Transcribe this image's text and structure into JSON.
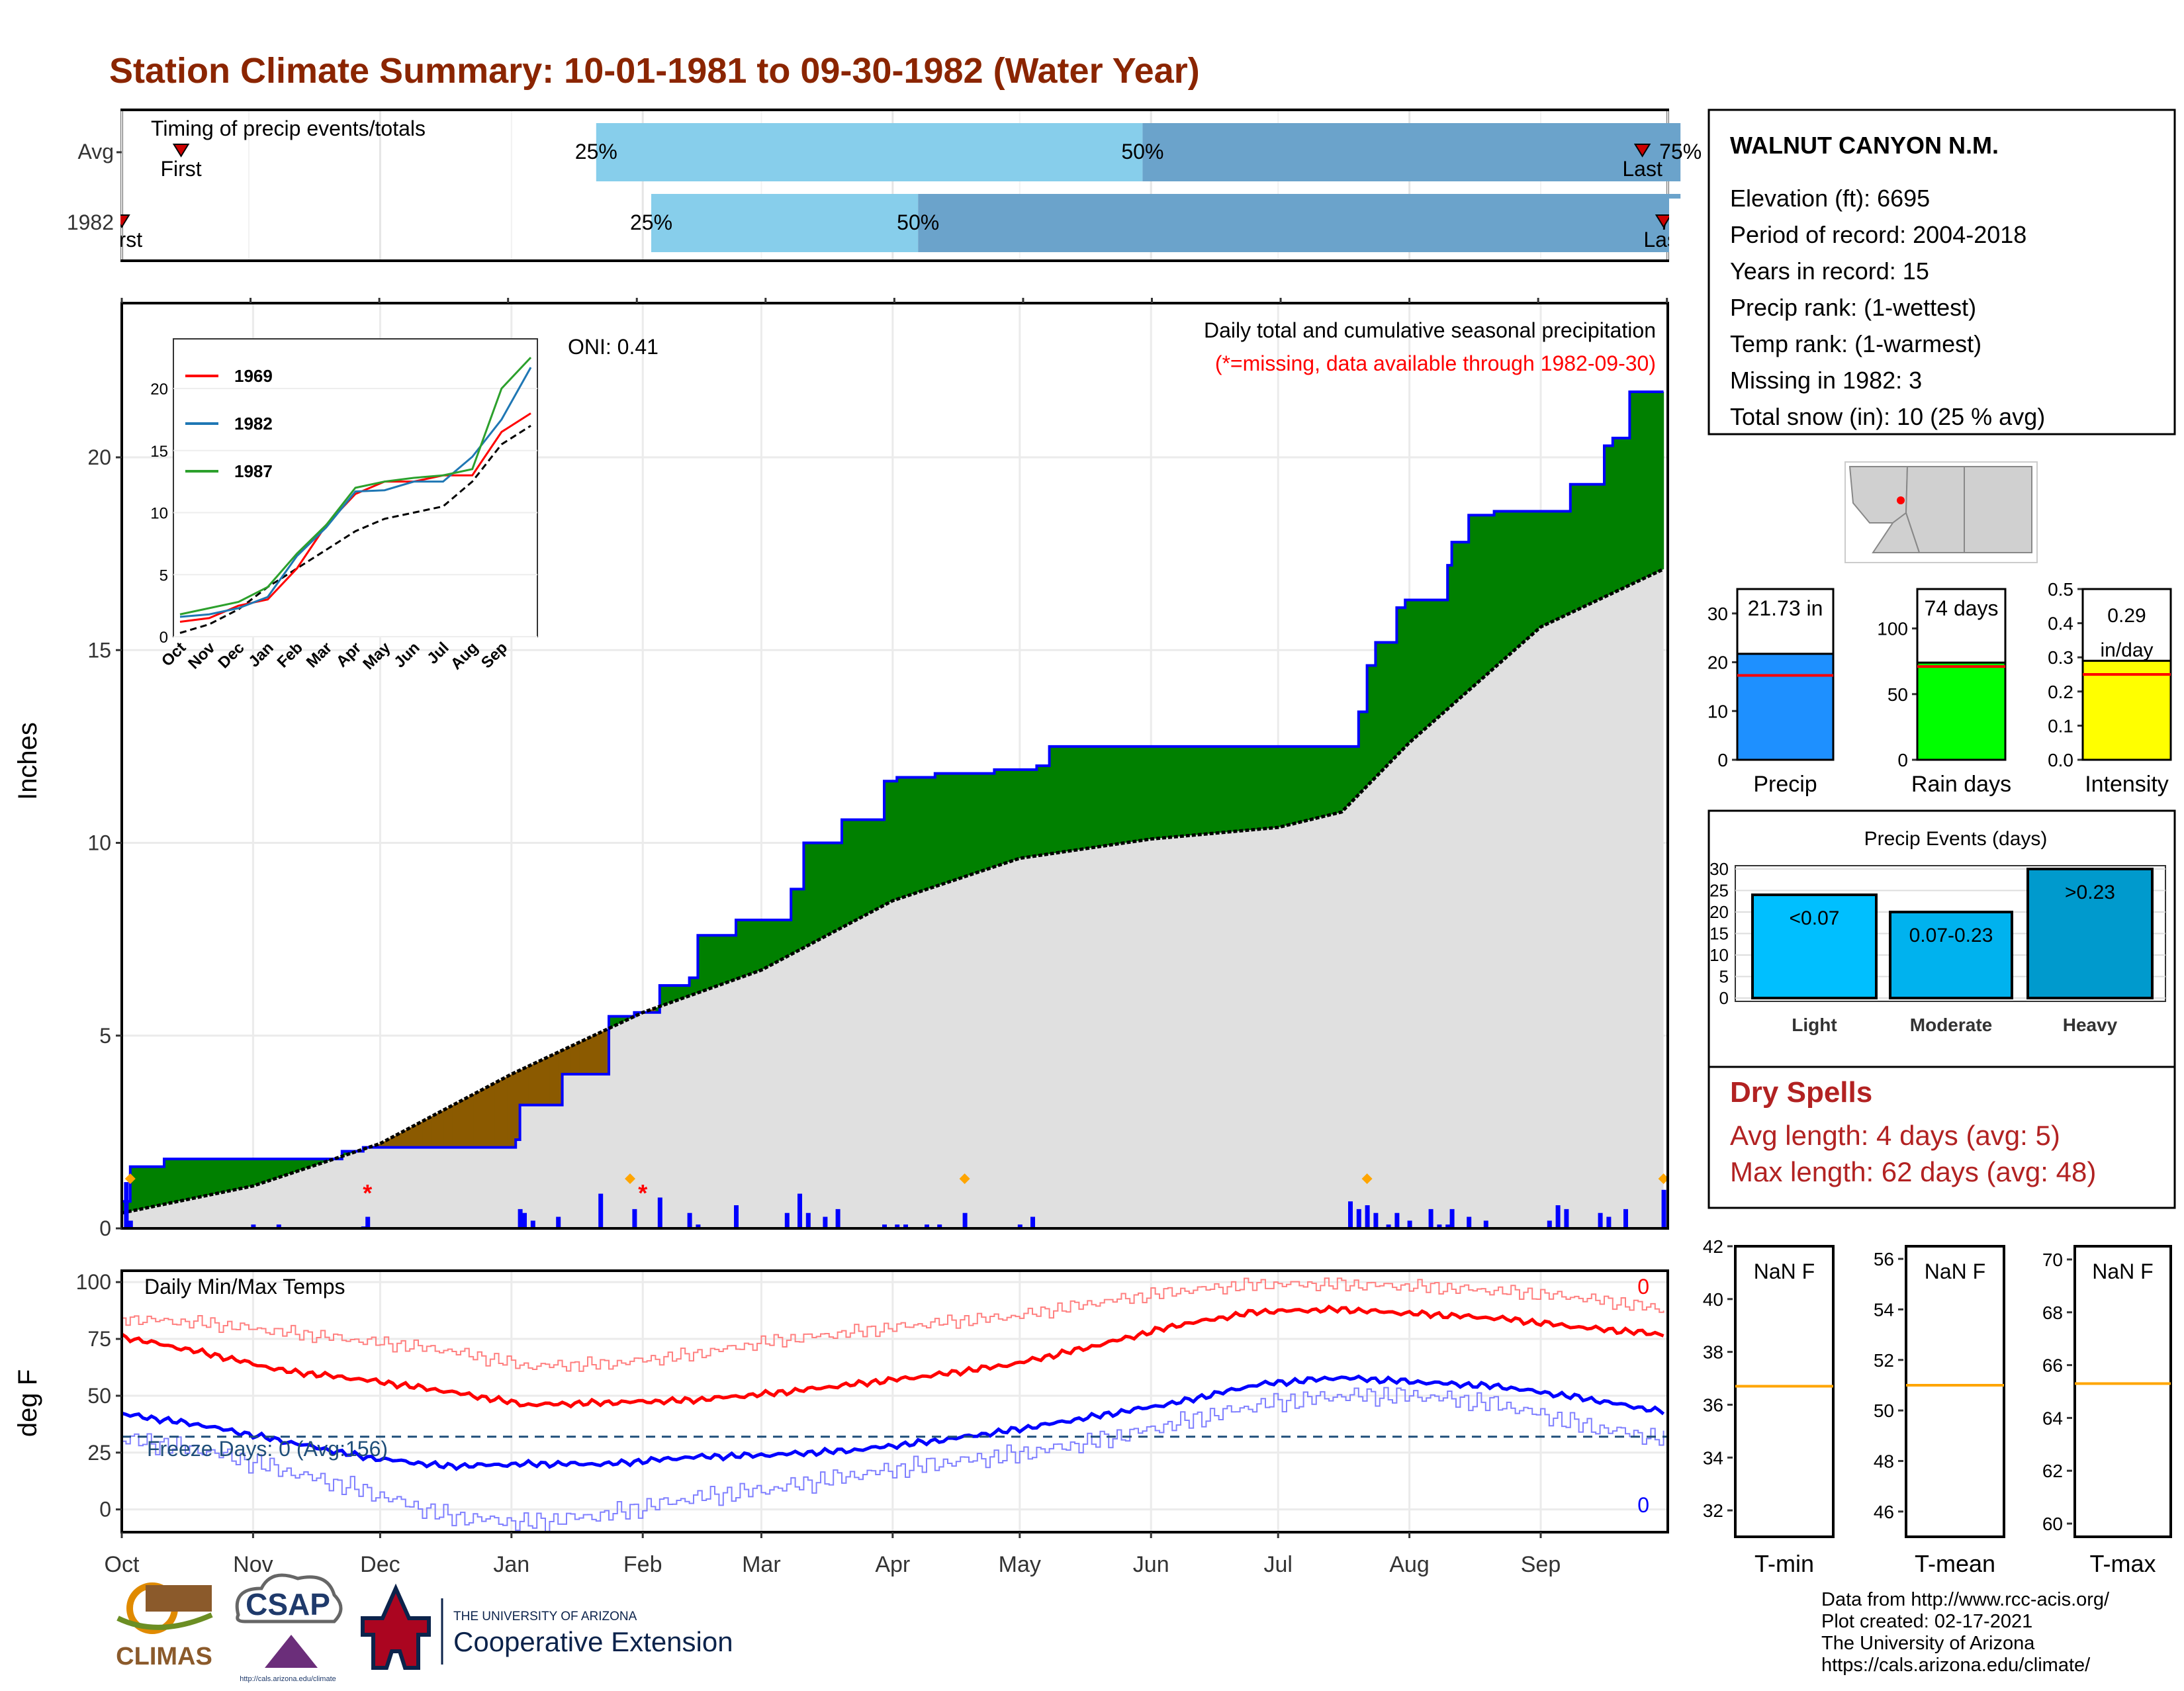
{
  "title": "Station Climate Summary: 10-01-1981 to 09-30-1982 (Water Year)",
  "colors": {
    "title": "#8B2500",
    "precip_obs": "#0000FF",
    "surplus": "#008000",
    "deficit": "#8B5A00",
    "normal_fill": "#E0E0E0",
    "quartile_light": "#87CEEB",
    "quartile_dark": "#6BA3CB",
    "tmax": "#FF0000",
    "tmin": "#0000FF",
    "tmax_record": "#FF8080",
    "tmin_record": "#8080FF",
    "freeze_line": "#1F4E79",
    "precip_box": "#1E90FF",
    "raindays_box": "#00FF00",
    "intensity_box": "#FFFF00",
    "light": "#00BFFF",
    "moderate": "#00B2EE",
    "heavy": "#009ACD",
    "dry_spell_text": "#B22222",
    "normal_line": "#FF0000",
    "tnorm_line": "#FFA500"
  },
  "timing": {
    "title": "Timing of precip events/totals",
    "rows": [
      {
        "label": "Avg",
        "first": "First",
        "last": "Last",
        "p25": "25%",
        "p50": "50%",
        "p75": "75%",
        "first_day": 14,
        "p25_day": 112,
        "p50_day": 241,
        "p75_day": 368,
        "last_day": 359
      },
      {
        "label": "1982",
        "first": "First",
        "last": "Last",
        "p25": "25%",
        "p50": "50%",
        "p75": "75%",
        "first_day": 0,
        "p25_day": 125,
        "p50_day": 188,
        "p75_day": 368,
        "last_day": 364
      }
    ]
  },
  "chart_data": [
    {
      "type": "area",
      "name": "cumulative_precip",
      "title": "Daily total and cumulative seasonal precipitation",
      "subtitle": "(*=missing, data available through 1982-09-30)",
      "oni": "ONI: 0.41",
      "ylabel": "Inches",
      "ylim": [
        0,
        24
      ],
      "yticks": [
        0,
        5,
        10,
        15,
        20
      ],
      "xlim_days": [
        0,
        364
      ],
      "month_labels": [
        "Oct",
        "Nov",
        "Dec",
        "Jan",
        "Feb",
        "Mar",
        "Apr",
        "May",
        "Jun",
        "Jul",
        "Aug",
        "Sep"
      ],
      "month_starts": [
        0,
        31,
        61,
        92,
        123,
        151,
        182,
        212,
        243,
        273,
        304,
        335
      ],
      "observed_cumulative": {
        "days": [
          0,
          2,
          10,
          38,
          52,
          57,
          93,
          94,
          104,
          113,
          115,
          121,
          127,
          134,
          136,
          145,
          158,
          161,
          170,
          180,
          183,
          184,
          190,
          192,
          206,
          216,
          219,
          240,
          270,
          273,
          290,
          292,
          294,
          296,
          301,
          303,
          313,
          314,
          318,
          324,
          339,
          342,
          350,
          352,
          353,
          356,
          364
        ],
        "values": [
          0.7,
          1.6,
          1.8,
          1.8,
          2.0,
          2.1,
          2.3,
          3.2,
          4.0,
          4.0,
          5.5,
          5.6,
          6.3,
          6.5,
          7.6,
          8.0,
          8.8,
          10.0,
          10.6,
          11.6,
          11.7,
          11.7,
          11.7,
          11.8,
          11.9,
          12.0,
          12.5,
          12.5,
          12.5,
          12.5,
          12.5,
          13.4,
          14.6,
          15.2,
          16.1,
          16.3,
          17.2,
          17.8,
          18.5,
          18.6,
          18.6,
          19.3,
          20.3,
          20.5,
          20.5,
          21.7,
          21.7
        ]
      },
      "normal_cumulative": {
        "days": [
          0,
          31,
          61,
          92,
          123,
          151,
          182,
          212,
          243,
          273,
          288,
          304,
          335,
          364
        ],
        "values": [
          0.4,
          1.1,
          2.2,
          4.0,
          5.6,
          6.7,
          8.5,
          9.6,
          10.1,
          10.4,
          10.8,
          12.6,
          15.6,
          17.1
        ]
      },
      "daily_totals": {
        "days": [
          1,
          2,
          31,
          37,
          57,
          58,
          94,
          95,
          97,
          103,
          113,
          121,
          127,
          134,
          136,
          145,
          157,
          160,
          162,
          166,
          169,
          180,
          183,
          185,
          190,
          193,
          199,
          212,
          215,
          290,
          292,
          294,
          296,
          299,
          301,
          304,
          309,
          311,
          313,
          314,
          318,
          322,
          337,
          339,
          341,
          349,
          351,
          355,
          364
        ],
        "values": [
          1.2,
          0.2,
          0.1,
          0.1,
          0.05,
          0.3,
          0.5,
          0.4,
          0.2,
          0.3,
          0.9,
          0.5,
          0.8,
          0.4,
          0.1,
          0.6,
          0.4,
          0.9,
          0.4,
          0.3,
          0.5,
          0.1,
          0.1,
          0.1,
          0.1,
          0.1,
          0.4,
          0.1,
          0.3,
          0.7,
          0.5,
          0.6,
          0.4,
          0.1,
          0.4,
          0.2,
          0.5,
          0.1,
          0.1,
          0.5,
          0.3,
          0.2,
          0.2,
          0.6,
          0.5,
          0.4,
          0.3,
          0.5,
          1.0
        ]
      },
      "missing_days": [
        58,
        123
      ],
      "inset": {
        "yticks": [
          0,
          5,
          10,
          15,
          20
        ],
        "month_labels": [
          "Oct",
          "Nov",
          "Dec",
          "Jan",
          "Feb",
          "Mar",
          "Apr",
          "May",
          "Jun",
          "Jul",
          "Aug",
          "Sep"
        ],
        "series": [
          {
            "name": "1969",
            "color": "#FF0000",
            "values": [
              1.2,
              1.5,
              2.5,
              3.0,
              5.5,
              9.0,
              11.5,
              12.5,
              12.5,
              13.0,
              13.0,
              16.5,
              18.0
            ]
          },
          {
            "name": "1982",
            "color": "#1F77B4",
            "values": [
              1.6,
              1.8,
              2.3,
              3.2,
              6.5,
              8.8,
              11.7,
              11.8,
              12.5,
              12.5,
              14.5,
              17.5,
              21.7
            ]
          },
          {
            "name": "1987",
            "color": "#2CA02C",
            "values": [
              1.8,
              2.3,
              2.8,
              4.0,
              6.7,
              9.0,
              12.0,
              12.5,
              12.8,
              13.0,
              13.5,
              20.0,
              22.5
            ]
          }
        ],
        "average": [
          0.3,
          1.0,
          2.2,
          4.0,
          5.5,
          7.0,
          8.5,
          9.5,
          10.0,
          10.5,
          12.5,
          15.5,
          17.0
        ]
      }
    },
    {
      "type": "line",
      "name": "daily_temps",
      "title": "Daily Min/Max Temps",
      "ylabel": "deg F",
      "ylim": [
        -10,
        105
      ],
      "yticks": [
        0,
        25,
        50,
        75,
        100
      ],
      "freeze_text": "Freeze Days: 0 (Avg:156)",
      "freeze_threshold": 32,
      "tmax_count": "0",
      "tmin_count": "0",
      "month_labels": [
        "Oct",
        "Nov",
        "Dec",
        "Jan",
        "Feb",
        "Mar",
        "Apr",
        "May",
        "Jun",
        "Jul",
        "Aug",
        "Sep"
      ],
      "series": [
        {
          "name": "tmax_normal",
          "values": [
            76,
            69,
            61,
            57,
            52,
            46,
            47,
            48,
            51,
            55,
            59,
            64,
            72,
            81,
            87,
            88,
            86,
            84,
            80,
            77
          ]
        },
        {
          "name": "tmin_normal",
          "values": [
            42,
            37,
            30,
            23,
            19,
            20,
            20,
            23,
            24,
            26,
            30,
            35,
            41,
            47,
            55,
            58,
            56,
            54,
            49,
            43
          ]
        },
        {
          "name": "tmax_record",
          "values": [
            84,
            82,
            78,
            74,
            70,
            63,
            64,
            68,
            74,
            78,
            82,
            85,
            91,
            96,
            99,
            99,
            98,
            96,
            93,
            88
          ]
        },
        {
          "name": "tmin_record",
          "values": [
            31,
            26,
            17,
            8,
            -3,
            -6,
            -2,
            5,
            9,
            15,
            20,
            24,
            30,
            38,
            46,
            50,
            50,
            46,
            37,
            31
          ]
        }
      ]
    },
    {
      "type": "bar",
      "name": "totals",
      "categories": [
        "Precip",
        "Rain days",
        "Intensity"
      ],
      "values": [
        21.73,
        74,
        0.29
      ],
      "value_labels": [
        "21.73 in",
        "74 days",
        "0.29 in/day"
      ],
      "normals": [
        17.3,
        71,
        0.25
      ],
      "ylims": [
        [
          0,
          35
        ],
        [
          0,
          130
        ],
        [
          0,
          0.5
        ]
      ],
      "yticks": [
        [
          0,
          10,
          20,
          30
        ],
        [
          0,
          50,
          100
        ],
        [
          0.0,
          0.1,
          0.2,
          0.3,
          0.4,
          0.5
        ]
      ]
    },
    {
      "type": "bar",
      "name": "precip_events",
      "title": "Precip Events (days)",
      "categories": [
        "Light",
        "Moderate",
        "Heavy"
      ],
      "values": [
        24,
        20,
        30
      ],
      "value_labels": [
        "<0.07",
        "0.07-0.23",
        ">0.23"
      ],
      "ylim": [
        0,
        30
      ],
      "yticks": [
        0,
        5,
        10,
        15,
        20,
        25,
        30
      ]
    },
    {
      "type": "bar",
      "name": "temp_boxes",
      "categories": [
        "T-min",
        "T-mean",
        "T-max"
      ],
      "value_labels": [
        "NaN F",
        "NaN F",
        "NaN F"
      ],
      "normals": [
        36.7,
        51.0,
        65.3
      ],
      "ylims": [
        [
          31,
          42
        ],
        [
          45,
          56.5
        ],
        [
          59.5,
          70.5
        ]
      ],
      "yticks": [
        [
          32,
          34,
          36,
          38,
          40,
          42
        ],
        [
          46,
          48,
          50,
          52,
          54,
          56
        ],
        [
          60,
          62,
          64,
          66,
          68,
          70
        ]
      ]
    }
  ],
  "station": {
    "name": "WALNUT CANYON N.M.",
    "lines": [
      "Elevation (ft): 6695",
      "Period of record: 2004-2018",
      "Years in record: 15",
      "Precip rank:  (1-wettest)",
      "Temp rank:  (1-warmest)",
      "Missing in 1982: 3",
      "Total snow (in): 10 (25 % avg)"
    ]
  },
  "dry_spells": {
    "title": "Dry Spells",
    "avg": "Avg length: 4 days (avg: 5)",
    "max": "Max length: 62 days (avg: 48)"
  },
  "footer": {
    "lines": [
      "Data from http://www.rcc-acis.org/",
      "Plot created: 02-17-2021",
      "The University of Arizona",
      "https://cals.arizona.edu/climate/"
    ],
    "logos": {
      "climas": "CLIMAS",
      "csap": "CSAP",
      "csap_url": "http://cals.arizona.edu/climate",
      "ua_top": "THE UNIVERSITY OF ARIZONA",
      "ua_bottom": "Cooperative Extension"
    }
  }
}
